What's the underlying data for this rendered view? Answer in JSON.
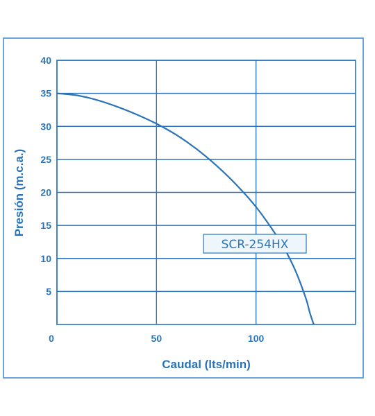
{
  "chart_data": {
    "type": "line",
    "xlabel": "Caudal (lts/min)",
    "ylabel": "Presión (m.c.a.)",
    "xlim": [
      0,
      150
    ],
    "ylim": [
      0,
      40
    ],
    "x_ticks": [
      "0",
      "50",
      "100"
    ],
    "y_ticks": [
      "5",
      "10",
      "15",
      "20",
      "25",
      "30",
      "35",
      "40"
    ],
    "grid": true,
    "series": [
      {
        "name": "SCR-254HX",
        "color": "#2a73b8",
        "x": [
          0,
          10,
          20,
          30,
          40,
          50,
          60,
          70,
          80,
          90,
          100,
          110,
          115,
          120,
          125,
          127,
          129
        ],
        "y": [
          35,
          34.7,
          34,
          33,
          31.8,
          30.4,
          28.7,
          26.6,
          24.1,
          21.2,
          17.8,
          13.6,
          11.1,
          8,
          4,
          1.8,
          0
        ]
      }
    ]
  },
  "colors": {
    "line": "#2a73b8",
    "frame": "#3d85c8",
    "background": "#ffffff",
    "label_fill": "#eef5fb"
  }
}
